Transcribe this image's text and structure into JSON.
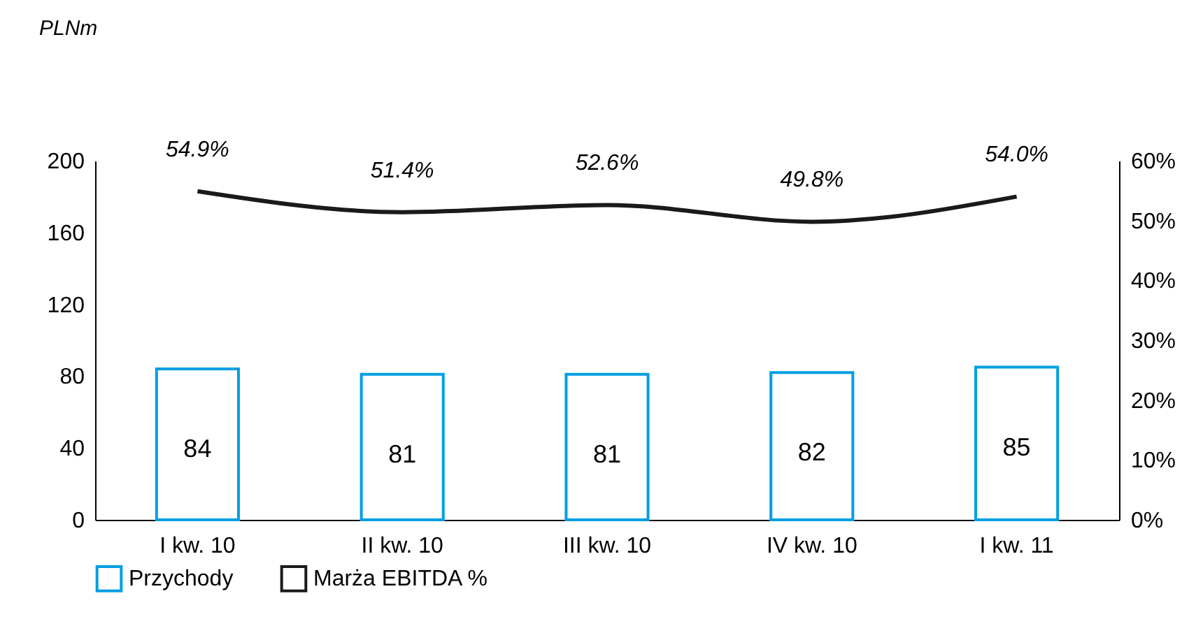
{
  "chart_data": {
    "type": "bar",
    "annotations": [
      "PLNm"
    ],
    "categories": [
      "I kw. 10",
      "II kw. 10",
      "III kw. 10",
      "IV kw. 10",
      "I kw. 11"
    ],
    "series": [
      {
        "name": "Przychody",
        "color": "#009fe3",
        "values": [
          84,
          81,
          81,
          82,
          85
        ],
        "value_labels": [
          "84",
          "81",
          "81",
          "82",
          "85"
        ]
      },
      {
        "name": "Marża EBITDA %",
        "type": "line",
        "axis": "y2",
        "color": "#1a1a1a",
        "values": [
          54.9,
          51.4,
          52.6,
          49.8,
          54.0
        ],
        "value_labels": [
          "54.9%",
          "51.4%",
          "52.6%",
          "49.8%",
          "54.0%"
        ]
      }
    ],
    "ylim": [
      0,
      200
    ],
    "yticks": [
      0,
      40,
      80,
      120,
      160,
      200
    ],
    "y2lim": [
      0,
      60
    ],
    "y2ticks": [
      {
        "value": 0,
        "label": "0%"
      },
      {
        "value": 10,
        "label": "10%"
      },
      {
        "value": 20,
        "label": "20%"
      },
      {
        "value": 30,
        "label": "30%"
      },
      {
        "value": 40,
        "label": "40%"
      },
      {
        "value": 50,
        "label": "50%"
      },
      {
        "value": 60,
        "label": "60%"
      }
    ],
    "legend": "bottom"
  }
}
